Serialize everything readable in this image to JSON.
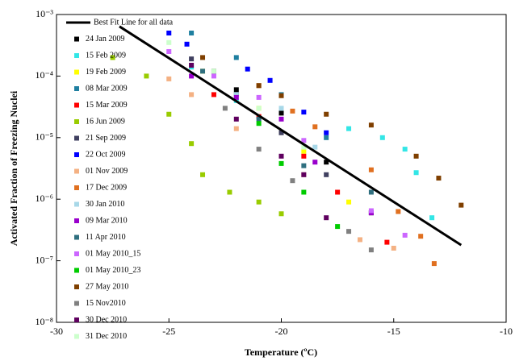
{
  "chart_data": {
    "type": "scatter",
    "x_label": "Temperature (ºC)",
    "y_label": "Activated Fraction of Freezing Nuclei",
    "xlim": [
      -30,
      -10
    ],
    "xticks": [
      -30,
      -25,
      -20,
      -15,
      -10
    ],
    "ylim": [
      1e-08,
      0.001
    ],
    "ylog": true,
    "yticks": [
      {
        "value": 1e-08,
        "label": "10⁻⁸"
      },
      {
        "value": 1e-07,
        "label": "10⁻⁷"
      },
      {
        "value": 1e-06,
        "label": "10⁻⁶"
      },
      {
        "value": 1e-05,
        "label": "10⁻⁵"
      },
      {
        "value": 0.0001,
        "label": "10⁻⁴"
      },
      {
        "value": 0.001,
        "label": "10⁻³"
      }
    ],
    "legend": "upper left",
    "fit_line": {
      "name": "Best Fit Line for all data",
      "color": "#000000",
      "x": [
        -27.2,
        -12
      ],
      "values": [
        0.00064,
        1.8e-07
      ]
    },
    "series": [
      {
        "name": "24 Jan 2009",
        "color": "#000000",
        "x": [
          -23,
          -22,
          -20,
          -18,
          -16
        ],
        "values": [
          0.00012,
          6e-05,
          2.5e-05,
          4e-06,
          6e-07
        ]
      },
      {
        "name": "15 Feb 2009",
        "color": "#33e6e6",
        "x": [
          -24,
          -22,
          -17,
          -15.5,
          -14.5,
          -14,
          -13.3
        ],
        "values": [
          0.00014,
          4e-05,
          1.4e-05,
          1e-05,
          6.5e-06,
          2.7e-06,
          5e-07
        ]
      },
      {
        "name": "19 Feb 2009",
        "color": "#ffff00",
        "x": [
          -23.5,
          -21,
          -19,
          -17
        ],
        "values": [
          0.00012,
          3e-05,
          6e-06,
          9e-07
        ]
      },
      {
        "name": "08 Mar 2009",
        "color": "#1f7fa0",
        "x": [
          -24,
          -22,
          -20,
          -18
        ],
        "values": [
          0.0005,
          0.0002,
          5e-05,
          1e-05
        ]
      },
      {
        "name": "15 Mar 2009",
        "color": "#ff0000",
        "x": [
          -23,
          -21,
          -19,
          -17.5,
          -15.3
        ],
        "values": [
          5e-05,
          2.2e-05,
          5e-06,
          1.3e-06,
          2e-07
        ]
      },
      {
        "name": "16 Jun 2009",
        "color": "#99cc00",
        "x": [
          -27.5,
          -26,
          -25,
          -24,
          -23.5,
          -22.3,
          -21,
          -20
        ],
        "values": [
          0.0002,
          0.0001,
          2.4e-05,
          8e-06,
          2.5e-06,
          1.3e-06,
          9e-07,
          5.8e-07
        ]
      },
      {
        "name": "21 Sep 2009",
        "color": "#404060",
        "x": [
          -24,
          -22,
          -20,
          -18
        ],
        "values": [
          0.00019,
          5e-05,
          1.2e-05,
          2.5e-06
        ]
      },
      {
        "name": "22 Oct 2009",
        "color": "#0000ff",
        "x": [
          -25,
          -24.2,
          -21.5,
          -20.5,
          -19,
          -18
        ],
        "values": [
          0.0005,
          0.00033,
          0.00013,
          8.5e-05,
          2.6e-05,
          1.2e-05
        ]
      },
      {
        "name": "01 Nov 2009",
        "color": "#f4b183",
        "x": [
          -25,
          -24,
          -22,
          -19,
          -16.5,
          -15
        ],
        "values": [
          9e-05,
          5e-05,
          1.4e-05,
          2.5e-06,
          2.2e-07,
          1.6e-07
        ]
      },
      {
        "name": "17 Dec 2009",
        "color": "#e07020",
        "x": [
          -21,
          -19.5,
          -18.5,
          -16,
          -14.8,
          -13.8,
          -13.2
        ],
        "values": [
          7e-05,
          2.7e-05,
          1.5e-05,
          3e-06,
          6.3e-07,
          2.5e-07,
          9e-08
        ]
      },
      {
        "name": "30 Jan 2010",
        "color": "#a8d8e8",
        "x": [
          -24,
          -22,
          -20,
          -18.5
        ],
        "values": [
          0.00015,
          5e-05,
          3e-05,
          7e-06
        ]
      },
      {
        "name": "09 Mar 2010",
        "color": "#9900cc",
        "x": [
          -24,
          -22,
          -20,
          -18.5,
          -16
        ],
        "values": [
          0.0001,
          4.5e-05,
          2e-05,
          4e-06,
          6e-07
        ]
      },
      {
        "name": "11 Apr 2010",
        "color": "#2f6f7f",
        "x": [
          -23.5,
          -21,
          -19,
          -16
        ],
        "values": [
          0.00012,
          2e-05,
          3.5e-06,
          1.3e-06
        ]
      },
      {
        "name": "01 May 2010_15",
        "color": "#cc66ff",
        "x": [
          -25,
          -23,
          -21,
          -19,
          -16,
          -14.5
        ],
        "values": [
          0.00025,
          0.0001,
          4.5e-05,
          9e-06,
          6.5e-07,
          2.6e-07
        ]
      },
      {
        "name": "01 May 2010_23",
        "color": "#00cc00",
        "x": [
          -21,
          -20,
          -19,
          -17.5
        ],
        "values": [
          1.7e-05,
          3.8e-06,
          1.3e-06,
          3.6e-07
        ]
      },
      {
        "name": "27 May 2010",
        "color": "#7f3f00",
        "x": [
          -23.5,
          -21,
          -20,
          -18,
          -16,
          -14,
          -13,
          -12
        ],
        "values": [
          0.0002,
          7e-05,
          4.8e-05,
          2.4e-05,
          1.6e-05,
          5e-06,
          2.2e-06,
          8e-07
        ]
      },
      {
        "name": "15 Nov2010",
        "color": "#808080",
        "x": [
          -22.5,
          -21,
          -19.5,
          -17,
          -16
        ],
        "values": [
          3e-05,
          6.5e-06,
          2e-06,
          3e-07,
          1.5e-07
        ]
      },
      {
        "name": "30 Dec 2010",
        "color": "#5f005f",
        "x": [
          -24,
          -22,
          -20,
          -19,
          -18
        ],
        "values": [
          0.00015,
          2e-05,
          5e-06,
          2.5e-06,
          5e-07
        ]
      },
      {
        "name": "31 Dec 2010",
        "color": "#ccffcc",
        "x": [
          -25,
          -23,
          -21,
          -19
        ],
        "values": [
          0.00035,
          0.00012,
          3e-05,
          7e-06
        ]
      }
    ]
  }
}
